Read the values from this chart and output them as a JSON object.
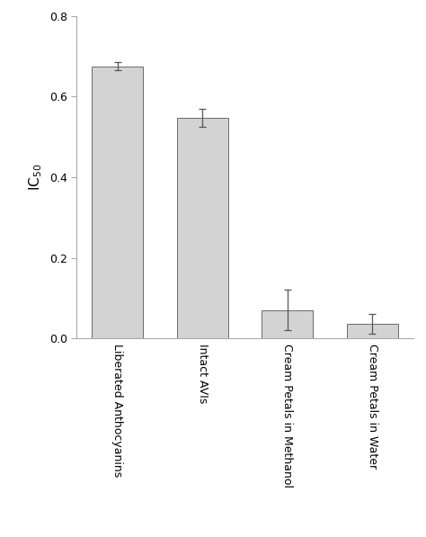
{
  "categories": [
    "Liberated Anthocyanins",
    "Intact AVIs",
    "Cream Petals in Methanol",
    "Cream Petals in Water"
  ],
  "values": [
    0.675,
    0.548,
    0.07,
    0.036
  ],
  "errors": [
    0.01,
    0.022,
    0.05,
    0.024
  ],
  "bar_color": "#d3d3d3",
  "bar_edgecolor": "#555555",
  "ylabel": "IC$_{50}$",
  "ylim": [
    0.0,
    0.8
  ],
  "yticks": [
    0.0,
    0.2,
    0.4,
    0.6,
    0.8
  ],
  "bar_width": 0.6,
  "background_color": "#ffffff",
  "capsize": 3,
  "ecolor": "#555555",
  "elinewidth": 0.9,
  "bar_linewidth": 0.6,
  "ylabel_fontsize": 11,
  "tick_fontsize": 9,
  "label_fontsize": 9
}
